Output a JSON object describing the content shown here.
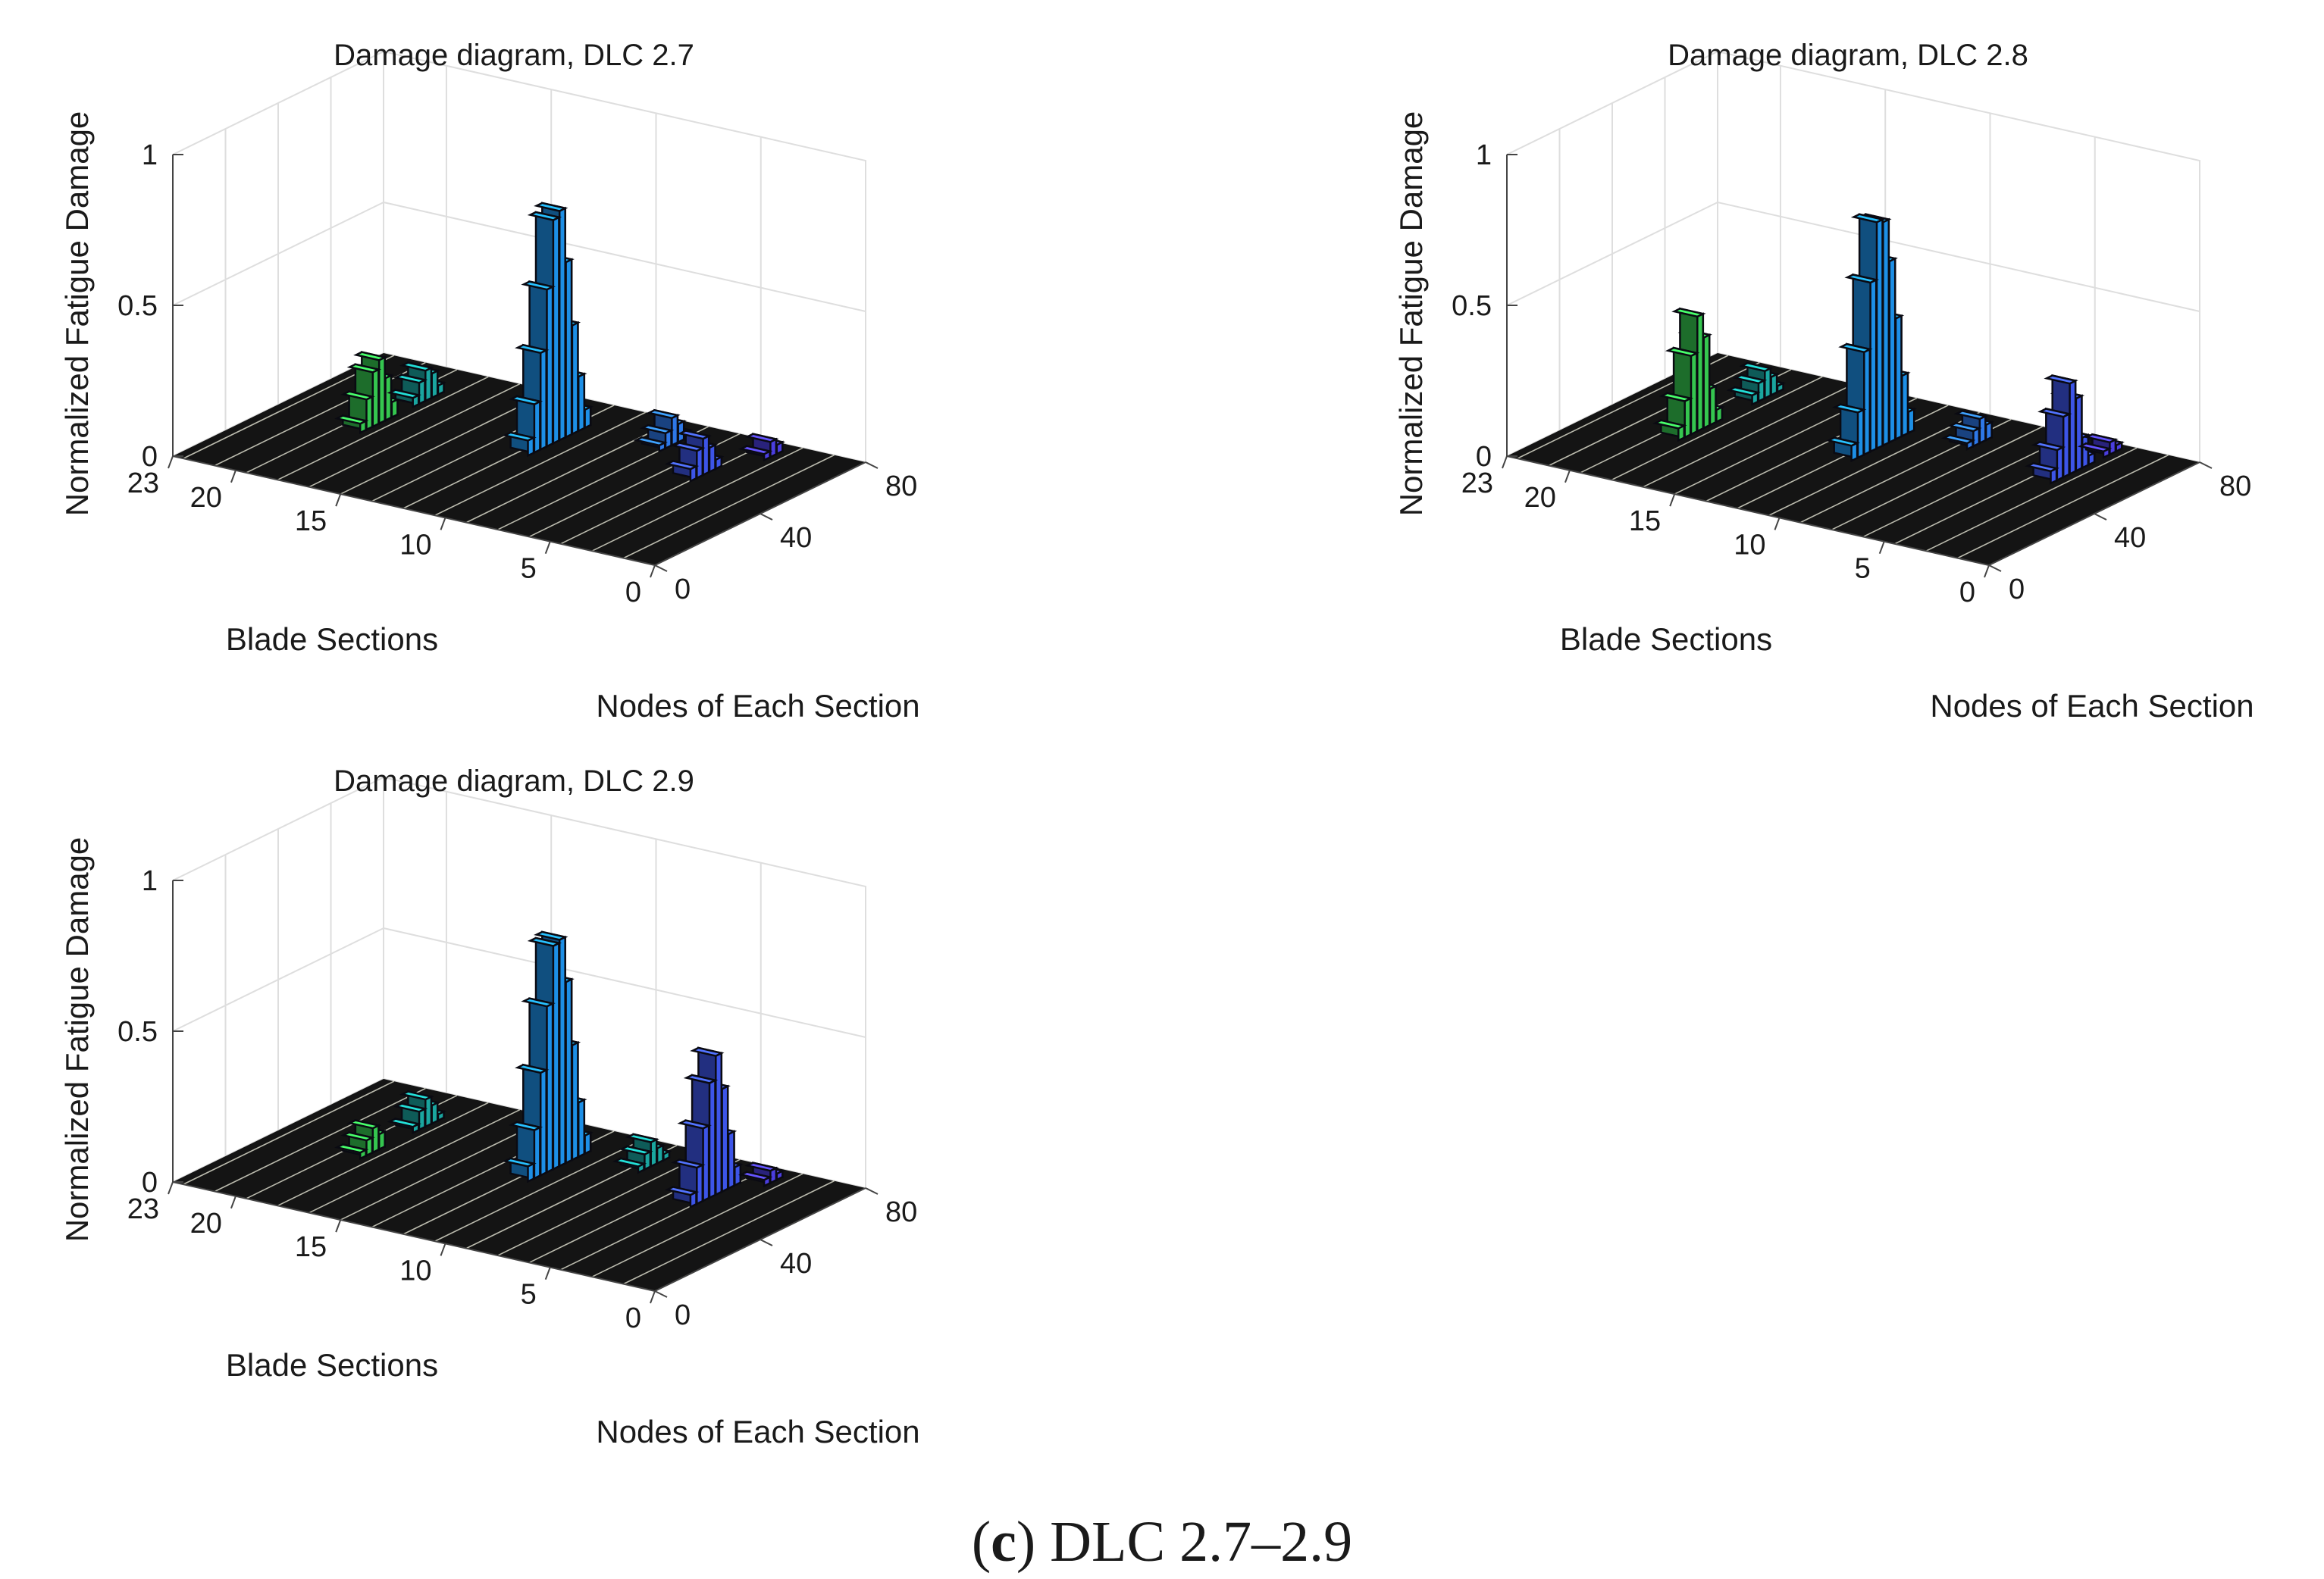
{
  "figure": {
    "caption_label": "c",
    "caption_text": "DLC 2.7–2.9"
  },
  "colors": {
    "floor": "#141414",
    "floor_stripe": "#d9d9c9",
    "grid": "#dedede",
    "axis": "#444444",
    "bar_edge": "#0a0a12"
  },
  "chart_data": [
    {
      "type": "bar3d",
      "title": "Damage diagram, DLC 2.7",
      "xlabel": "Nodes of Each Section",
      "ylabel": "Blade Sections",
      "zlabel": "Normalized Fatigue Damage",
      "xlim": [
        0,
        80
      ],
      "ylim": [
        0,
        23
      ],
      "zlim": [
        0,
        1
      ],
      "xticks": [
        "0",
        "40",
        "80"
      ],
      "yticks": [
        "0",
        "5",
        "10",
        "15",
        "20",
        "23"
      ],
      "zticks": [
        "0",
        "0.5",
        "1"
      ],
      "groups": [
        {
          "section": 12,
          "node": 44,
          "color": "#1d8fe6",
          "values": [
            0.05,
            0.16,
            0.32,
            0.52,
            0.74,
            0.76,
            0.58,
            0.36,
            0.18,
            0.06
          ]
        },
        {
          "section": 19,
          "node": 36,
          "color": "#35c64f",
          "values": [
            0.03,
            0.1,
            0.18,
            0.21,
            0.14,
            0.05
          ]
        },
        {
          "section": 19,
          "node": 56,
          "color": "#1aa6a0",
          "values": [
            0.03,
            0.07,
            0.1,
            0.08,
            0.03
          ]
        },
        {
          "section": 8,
          "node": 62,
          "color": "#2e78e8",
          "values": [
            0.02,
            0.05,
            0.09,
            0.06,
            0.02
          ]
        },
        {
          "section": 5,
          "node": 50,
          "color": "#3d55e8",
          "values": [
            0.04,
            0.09,
            0.12,
            0.08,
            0.03
          ]
        },
        {
          "section": 4,
          "node": 70,
          "color": "#4b3ee0",
          "values": [
            0.02,
            0.05,
            0.03
          ]
        }
      ]
    },
    {
      "type": "bar3d",
      "title": "Damage diagram, DLC 2.8",
      "xlabel": "Nodes of Each Section",
      "ylabel": "Blade Sections",
      "zlabel": "Normalized Fatigue Damage",
      "xlim": [
        0,
        80
      ],
      "ylim": [
        0,
        23
      ],
      "zlim": [
        0,
        1
      ],
      "xticks": [
        "0",
        "40",
        "80"
      ],
      "yticks": [
        "0",
        "5",
        "10",
        "15",
        "20",
        "23"
      ],
      "zticks": [
        "0",
        "0.5",
        "1"
      ],
      "groups": [
        {
          "section": 12,
          "node": 40,
          "color": "#1d8fe6",
          "values": [
            0.05,
            0.15,
            0.34,
            0.56,
            0.75,
            0.74,
            0.6,
            0.4,
            0.2,
            0.07
          ]
        },
        {
          "section": 19,
          "node": 30,
          "color": "#35c64f",
          "values": [
            0.04,
            0.12,
            0.26,
            0.38,
            0.3,
            0.12,
            0.04
          ]
        },
        {
          "section": 19,
          "node": 58,
          "color": "#1aa6a0",
          "values": [
            0.03,
            0.06,
            0.09,
            0.06,
            0.02
          ]
        },
        {
          "section": 9,
          "node": 60,
          "color": "#2e78e8",
          "values": [
            0.02,
            0.05,
            0.08,
            0.05
          ]
        },
        {
          "section": 4,
          "node": 52,
          "color": "#3d55e8",
          "values": [
            0.04,
            0.1,
            0.2,
            0.3,
            0.24,
            0.1,
            0.03
          ]
        },
        {
          "section": 4,
          "node": 72,
          "color": "#4b3ee0",
          "values": [
            0.02,
            0.04,
            0.02
          ]
        }
      ]
    },
    {
      "type": "bar3d",
      "title": "Damage diagram, DLC 2.9",
      "xlabel": "Nodes of Each Section",
      "ylabel": "Blade Sections",
      "zlabel": "Normalized Fatigue Damage",
      "xlim": [
        0,
        80
      ],
      "ylim": [
        0,
        23
      ],
      "zlim": [
        0,
        1
      ],
      "xticks": [
        "0",
        "40",
        "80"
      ],
      "yticks": [
        "0",
        "5",
        "10",
        "15",
        "20",
        "23"
      ],
      "zticks": [
        "0",
        "0.5",
        "1"
      ],
      "groups": [
        {
          "section": 12,
          "node": 44,
          "color": "#1d8fe6",
          "values": [
            0.05,
            0.16,
            0.34,
            0.55,
            0.74,
            0.75,
            0.6,
            0.38,
            0.18,
            0.06
          ]
        },
        {
          "section": 19,
          "node": 36,
          "color": "#35c64f",
          "values": [
            0.02,
            0.05,
            0.08,
            0.05
          ]
        },
        {
          "section": 19,
          "node": 56,
          "color": "#1aa6a0",
          "values": [
            0.02,
            0.06,
            0.09,
            0.06,
            0.02
          ]
        },
        {
          "section": 9,
          "node": 62,
          "color": "#1aa6a0",
          "values": [
            0.02,
            0.05,
            0.08,
            0.05,
            0.02
          ]
        },
        {
          "section": 5,
          "node": 50,
          "color": "#3d55e8",
          "values": [
            0.04,
            0.12,
            0.24,
            0.38,
            0.46,
            0.34,
            0.18,
            0.06
          ]
        },
        {
          "section": 4,
          "node": 70,
          "color": "#4b3ee0",
          "values": [
            0.02,
            0.04,
            0.02
          ]
        }
      ]
    }
  ]
}
